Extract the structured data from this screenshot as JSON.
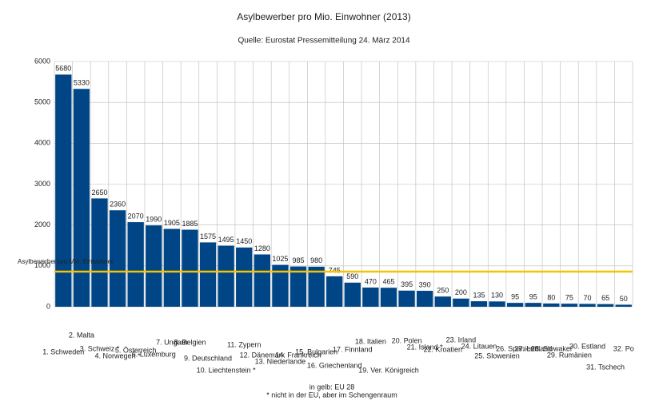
{
  "chart_data": {
    "type": "bar",
    "title": "Asylbewerber pro Mio. Einwohner (2013)",
    "subtitle": "Quelle: Eurostat Pressemitteilung 24. März 2014",
    "categories": [
      "1. Schweden",
      "2. Malta",
      "3. Schweiz *",
      "4. Norwegen *",
      "5. Österreich",
      "6. Luxemburg",
      "7. Ungarn",
      "8. Belgien",
      "9. Deutschland",
      "10. Liechtenstein *",
      "11. Zypern",
      "12. Dänemark",
      "13. Niederlande",
      "14. Frankreich",
      "15. Bulgarien",
      "16. Griechenland",
      "17. Finnland",
      "18. Italien",
      "19. Ver. Königreich",
      "20. Polen",
      "21. Island *",
      "22. Kroatien",
      "23. Irland",
      "24. Litauen",
      "25. Slowenien",
      "26. Spanien",
      "27. Lettland",
      "28. Slowakei",
      "29. Rumänien",
      "30. Estland",
      "31. Tschech",
      "32. Po"
    ],
    "values": [
      5680,
      5330,
      2650,
      2360,
      2070,
      1990,
      1905,
      1885,
      1575,
      1495,
      1450,
      1280,
      1025,
      985,
      980,
      745,
      590,
      470,
      465,
      395,
      390,
      250,
      200,
      135,
      130,
      95,
      95,
      80,
      75,
      70,
      65,
      50
    ],
    "color": "#004586",
    "ylim": [
      0,
      6000
    ],
    "yticks": [
      0,
      1000,
      2000,
      3000,
      4000,
      5000,
      6000
    ],
    "grid": true,
    "reference_line": {
      "value": 860,
      "label": "Asylbewerber pro Mio. Einwohner",
      "color": "#f5c400"
    },
    "notes": [
      "in gelb: EU 28",
      "* nicht in der EU, aber im Schengenraum"
    ]
  }
}
